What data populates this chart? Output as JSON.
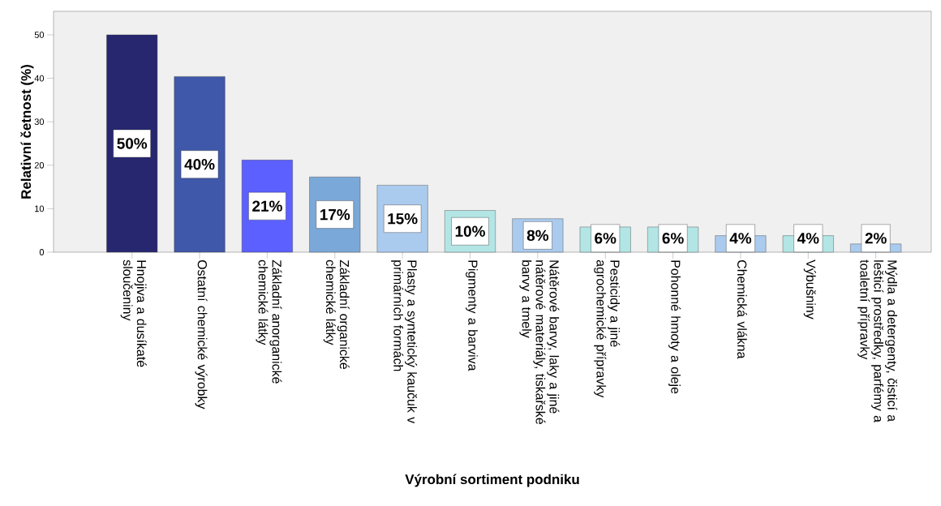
{
  "chart_data": {
    "type": "bar",
    "xlabel": "Výrobní sortiment podniku",
    "ylabel": "Relativní četnost (%)",
    "categories": [
      "Hnojiva a dusíkaté sloučeniny",
      "Ostatní chemické výrobky",
      "Základní anorganické chemické látky",
      "Základní organické chemické látky",
      "Plasty a syntetický kaučuk v primárních formách",
      "Pigmenty a barviva",
      "Nátěrové barvy, laky a jiné nátěrové materiály, tiskařské barvy a tmely",
      "Pesticidy a jiné agrochemické přípravky",
      "Pohonné hmoty a oleje",
      "Chemická vlákna",
      "Výbušniny",
      "Mýdla a detergenty, čisticí a lešticí prostředky, parfémy a toaletní přípravky"
    ],
    "values": [
      50,
      40.4,
      21.2,
      17.3,
      15.4,
      9.6,
      7.7,
      5.8,
      5.8,
      3.8,
      3.8,
      1.9
    ],
    "colors": [
      "#272770",
      "#3f58aa",
      "#5c60ff",
      "#7aa8d8",
      "#aacbee",
      "#b3e5e5",
      "#aacbee",
      "#b3e5e5",
      "#b3e5e5",
      "#aacbee",
      "#b3e5e5",
      "#aacbee"
    ],
    "value_labels": [
      "50%",
      "40%",
      "21%",
      "17%",
      "15%",
      "10%",
      "8%",
      "6%",
      "6%",
      "4%",
      "4%",
      "2%"
    ],
    "ylim": [
      0,
      55.4
    ],
    "yticks": [
      0,
      10,
      20,
      30,
      40,
      50
    ]
  }
}
